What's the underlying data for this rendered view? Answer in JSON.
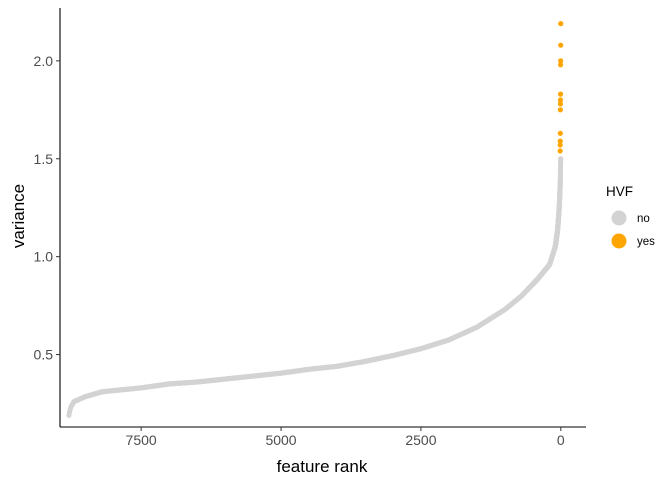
{
  "chart_data": {
    "type": "scatter",
    "xlabel": "feature rank",
    "ylabel": "variance",
    "x_reversed": true,
    "xlim": [
      8950,
      -450
    ],
    "ylim": [
      0.13,
      2.27
    ],
    "x_ticks": [
      7500,
      5000,
      2500,
      0
    ],
    "x_tick_labels": [
      "7500",
      "5000",
      "2500",
      "0"
    ],
    "y_ticks": [
      0.5,
      1.0,
      1.5,
      2.0
    ],
    "y_tick_labels": [
      "0.5",
      "1.0",
      "1.5",
      "2.0"
    ],
    "grid": false,
    "n_features": 8800,
    "curve_no": [
      [
        8790,
        0.19
      ],
      [
        8760,
        0.23
      ],
      [
        8700,
        0.26
      ],
      [
        8500,
        0.285
      ],
      [
        8200,
        0.31
      ],
      [
        7500,
        0.33
      ],
      [
        7000,
        0.35
      ],
      [
        6500,
        0.36
      ],
      [
        6000,
        0.375
      ],
      [
        5500,
        0.39
      ],
      [
        5000,
        0.405
      ],
      [
        4500,
        0.425
      ],
      [
        4000,
        0.44
      ],
      [
        3500,
        0.465
      ],
      [
        3000,
        0.495
      ],
      [
        2500,
        0.53
      ],
      [
        2000,
        0.575
      ],
      [
        1500,
        0.64
      ],
      [
        1000,
        0.73
      ],
      [
        700,
        0.8
      ],
      [
        400,
        0.89
      ],
      [
        200,
        0.96
      ],
      [
        100,
        1.05
      ],
      [
        60,
        1.13
      ],
      [
        40,
        1.2
      ],
      [
        25,
        1.27
      ],
      [
        15,
        1.34
      ],
      [
        8,
        1.4
      ],
      [
        5,
        1.47
      ],
      [
        3,
        1.5
      ]
    ],
    "legend": {
      "title": "HVF",
      "position": "right",
      "entries": [
        {
          "label": "no",
          "color": "#d3d3d3"
        },
        {
          "label": "yes",
          "color": "#ffa500"
        }
      ]
    },
    "series": [
      {
        "name": "yes",
        "color": "#ffa500",
        "points": [
          [
            1,
            2.19
          ],
          [
            2,
            2.08
          ],
          [
            3,
            2.0
          ],
          [
            4,
            1.98
          ],
          [
            5,
            1.83
          ],
          [
            6,
            1.8
          ],
          [
            7,
            1.78
          ],
          [
            8,
            1.75
          ],
          [
            9,
            1.63
          ],
          [
            10,
            1.59
          ],
          [
            11,
            1.57
          ],
          [
            12,
            1.54
          ]
        ]
      }
    ]
  }
}
